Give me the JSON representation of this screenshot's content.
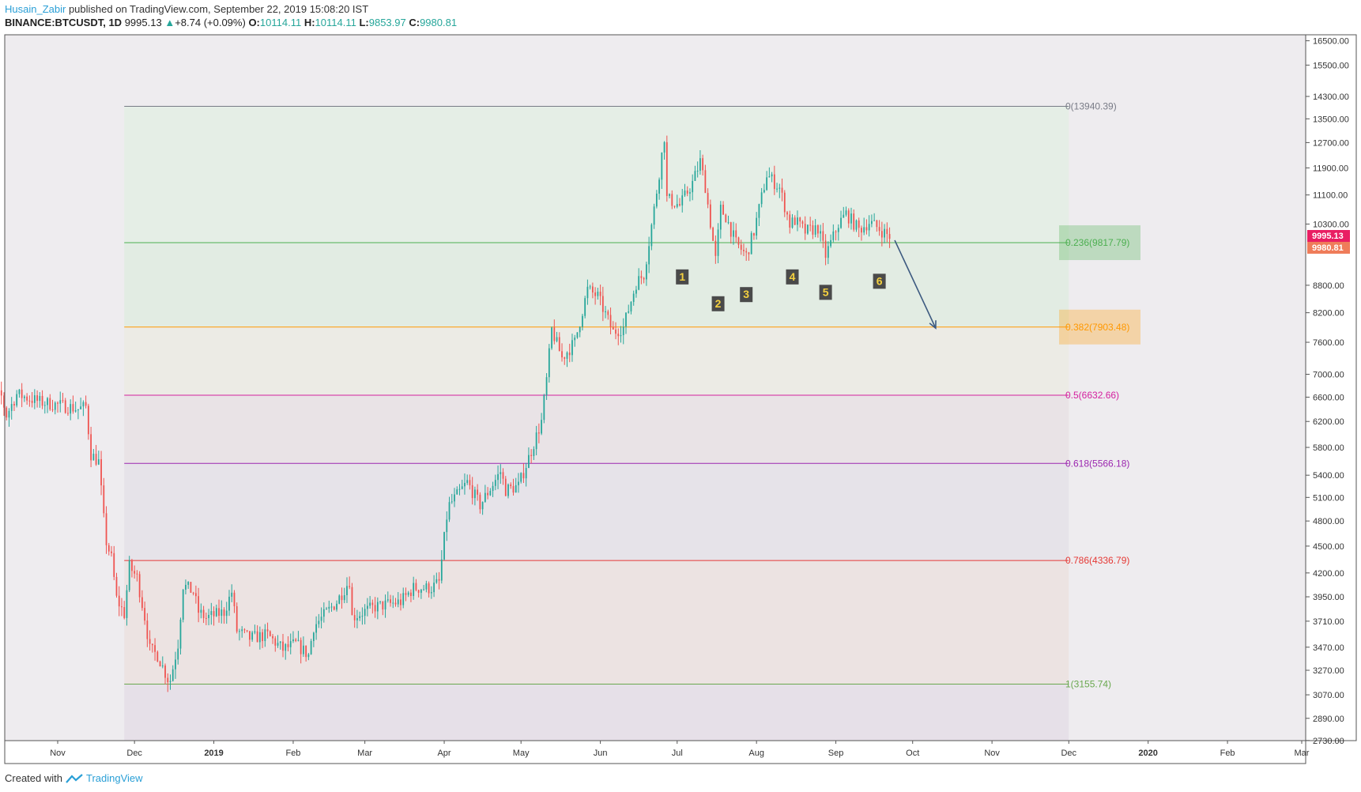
{
  "header": {
    "author": "Husain_Zabir",
    "published_text": "published on TradingView.com, September 22, 2019 15:08:20 IST",
    "symbol": "BINANCE:BTCUSDT, 1D",
    "last": "9995.13",
    "change": "+8.74 (+0.09%)",
    "o_label": "O:",
    "o_value": "10114.11",
    "h_label": "H:",
    "h_value": "10114.11",
    "l_label": "L:",
    "l_value": "9853.97",
    "c_label": "C:",
    "c_value": "9980.81"
  },
  "footer": {
    "created_with": "Created with",
    "brand": "TradingView"
  },
  "colors": {
    "up": "#26a69a",
    "down": "#ef5350",
    "frame": "#555555",
    "arrow": "#3d5a80"
  },
  "chart_data": {
    "type": "candlestick",
    "symbol": "BINANCE:BTCUSDT",
    "interval": "1D",
    "y_scale": "log",
    "ylim": [
      2730,
      16800
    ],
    "y_ticks": [
      16500,
      15500,
      14300,
      13500,
      12700,
      11900,
      11100,
      10300,
      8800,
      8200,
      7600,
      7000,
      6600,
      6200,
      5800,
      5400,
      5100,
      4800,
      4500,
      4200,
      3950,
      3710,
      3470,
      3270,
      3070,
      2890,
      2730
    ],
    "y_tick_labels": [
      "16500.00",
      "15500.00",
      "14300.00",
      "13500.00",
      "12700.00",
      "11900.00",
      "11100.00",
      "10300.00",
      "8800.00",
      "8200.00",
      "7600.00",
      "7000.00",
      "6600.00",
      "6200.00",
      "5800.00",
      "5400.00",
      "5100.00",
      "4800.00",
      "4500.00",
      "4200.00",
      "3950.00",
      "3710.00",
      "3470.00",
      "3270.00",
      "3070.00",
      "2890.00",
      "2730.00"
    ],
    "x_ticks": [
      {
        "label": "Nov",
        "date": "2018-11-01"
      },
      {
        "label": "Dec",
        "date": "2018-12-01"
      },
      {
        "label": "2019",
        "date": "2019-01-01"
      },
      {
        "label": "Feb",
        "date": "2019-02-01"
      },
      {
        "label": "Mar",
        "date": "2019-03-01"
      },
      {
        "label": "Apr",
        "date": "2019-04-01"
      },
      {
        "label": "May",
        "date": "2019-05-01"
      },
      {
        "label": "Jun",
        "date": "2019-06-01"
      },
      {
        "label": "Jul",
        "date": "2019-07-01"
      },
      {
        "label": "Aug",
        "date": "2019-08-01"
      },
      {
        "label": "Sep",
        "date": "2019-09-01"
      },
      {
        "label": "Oct",
        "date": "2019-10-01"
      },
      {
        "label": "Nov",
        "date": "2019-11-01"
      },
      {
        "label": "Dec",
        "date": "2019-12-01"
      },
      {
        "label": "2020",
        "date": "2020-01-01"
      },
      {
        "label": "Feb",
        "date": "2020-02-01"
      },
      {
        "label": "Mar",
        "date": "2020-03-01"
      }
    ],
    "price_path": [
      [
        "2018-10-01",
        6570
      ],
      [
        "2018-10-06",
        6640
      ],
      [
        "2018-10-10",
        6610
      ],
      [
        "2018-10-12",
        6300
      ],
      [
        "2018-10-16",
        6650
      ],
      [
        "2018-10-25",
        6520
      ],
      [
        "2018-11-05",
        6440
      ],
      [
        "2018-11-09",
        6400
      ],
      [
        "2018-11-12",
        6440
      ],
      [
        "2018-11-14",
        5700
      ],
      [
        "2018-11-17",
        5590
      ],
      [
        "2018-11-19",
        4820
      ],
      [
        "2018-11-20",
        4550
      ],
      [
        "2018-11-22",
        4360
      ],
      [
        "2018-11-24",
        3930
      ],
      [
        "2018-11-27",
        3780
      ],
      [
        "2018-11-29",
        4270
      ],
      [
        "2018-12-02",
        4150
      ],
      [
        "2018-12-05",
        3750
      ],
      [
        "2018-12-07",
        3450
      ],
      [
        "2018-12-10",
        3400
      ],
      [
        "2018-12-14",
        3200
      ],
      [
        "2018-12-15",
        3190
      ],
      [
        "2018-12-18",
        3500
      ],
      [
        "2018-12-20",
        4070
      ],
      [
        "2018-12-24",
        4000
      ],
      [
        "2018-12-26",
        3800
      ],
      [
        "2018-12-29",
        3740
      ],
      [
        "2019-01-05",
        3800
      ],
      [
        "2019-01-08",
        4000
      ],
      [
        "2019-01-10",
        3620
      ],
      [
        "2019-01-15",
        3550
      ],
      [
        "2019-01-22",
        3580
      ],
      [
        "2019-01-28",
        3450
      ],
      [
        "2019-02-02",
        3500
      ],
      [
        "2019-02-07",
        3400
      ],
      [
        "2019-02-09",
        3660
      ],
      [
        "2019-02-18",
        3900
      ],
      [
        "2019-02-23",
        4120
      ],
      [
        "2019-02-24",
        3750
      ],
      [
        "2019-03-05",
        3850
      ],
      [
        "2019-03-15",
        3900
      ],
      [
        "2019-03-20",
        4040
      ],
      [
        "2019-03-27",
        4040
      ],
      [
        "2019-03-30",
        4100
      ],
      [
        "2019-04-02",
        4850
      ],
      [
        "2019-04-03",
        5000
      ],
      [
        "2019-04-10",
        5300
      ],
      [
        "2019-04-15",
        5000
      ],
      [
        "2019-04-23",
        5450
      ],
      [
        "2019-04-25",
        5200
      ],
      [
        "2019-04-30",
        5250
      ],
      [
        "2019-05-05",
        5750
      ],
      [
        "2019-05-09",
        6200
      ],
      [
        "2019-05-11",
        6900
      ],
      [
        "2019-05-13",
        7850
      ],
      [
        "2019-05-17",
        7300
      ],
      [
        "2019-05-22",
        7600
      ],
      [
        "2019-05-27",
        8700
      ],
      [
        "2019-05-31",
        8550
      ],
      [
        "2019-06-06",
        7800
      ],
      [
        "2019-06-10",
        7900
      ],
      [
        "2019-06-15",
        8850
      ],
      [
        "2019-06-18",
        9050
      ],
      [
        "2019-06-22",
        10700
      ],
      [
        "2019-06-26",
        12900
      ],
      [
        "2019-06-27",
        11000
      ],
      [
        "2019-07-02",
        10800
      ],
      [
        "2019-07-07",
        11450
      ],
      [
        "2019-07-10",
        12100
      ],
      [
        "2019-07-12",
        11350
      ],
      [
        "2019-07-16",
        9400
      ],
      [
        "2019-07-18",
        10700
      ],
      [
        "2019-07-20",
        10500
      ],
      [
        "2019-07-24",
        9800
      ],
      [
        "2019-07-28",
        9500
      ],
      [
        "2019-07-31",
        10100
      ],
      [
        "2019-08-05",
        11700
      ],
      [
        "2019-08-10",
        11300
      ],
      [
        "2019-08-14",
        10300
      ],
      [
        "2019-08-16",
        10400
      ],
      [
        "2019-08-20",
        10100
      ],
      [
        "2019-08-25",
        10200
      ],
      [
        "2019-08-28",
        9500
      ],
      [
        "2019-09-02",
        10300
      ],
      [
        "2019-09-05",
        10580
      ],
      [
        "2019-09-10",
        10150
      ],
      [
        "2019-09-14",
        10350
      ],
      [
        "2019-09-18",
        10170
      ],
      [
        "2019-09-22",
        9980
      ]
    ],
    "fib_levels": [
      {
        "ratio": 0,
        "price": 13940.39,
        "label": "0(13940.39)",
        "color": "#787b86",
        "highlight": false
      },
      {
        "ratio": 0.236,
        "price": 9817.79,
        "label": "0.236(9817.79)",
        "color": "#4caf50",
        "highlight": true
      },
      {
        "ratio": 0.382,
        "price": 7903.48,
        "label": "0.382(7903.48)",
        "color": "#ff9800",
        "highlight": true
      },
      {
        "ratio": 0.5,
        "price": 6632.66,
        "label": "0.5(6632.66)",
        "color": "#d4209f",
        "highlight": false
      },
      {
        "ratio": 0.618,
        "price": 5566.18,
        "label": "0.618(5566.18)",
        "color": "#9c27b0",
        "highlight": false
      },
      {
        "ratio": 0.786,
        "price": 4336.79,
        "label": "0.786(4336.79)",
        "color": "#e53935",
        "highlight": false
      },
      {
        "ratio": 1,
        "price": 3155.74,
        "label": "1(3155.74)",
        "color": "#6aa84f",
        "highlight": false
      }
    ],
    "fib_range": {
      "start": "2018-11-27",
      "end": "2019-12-01"
    },
    "markers": [
      {
        "label": "1",
        "date": "2019-07-03",
        "price": 9000
      },
      {
        "label": "2",
        "date": "2019-07-17",
        "price": 8400
      },
      {
        "label": "3",
        "date": "2019-07-28",
        "price": 8600
      },
      {
        "label": "4",
        "date": "2019-08-15",
        "price": 9000
      },
      {
        "label": "5",
        "date": "2019-08-28",
        "price": 8650
      },
      {
        "label": "6",
        "date": "2019-09-18",
        "price": 8900
      }
    ],
    "arrow": {
      "from": {
        "date": "2019-09-24",
        "price": 9880
      },
      "to": {
        "date": "2019-10-10",
        "price": 7880
      }
    },
    "price_tags": [
      {
        "text": "9995.13",
        "price": 10000,
        "color": "#e91e63"
      },
      {
        "text": "9980.81",
        "price": 9700,
        "color": "#ef7c5a"
      }
    ]
  }
}
